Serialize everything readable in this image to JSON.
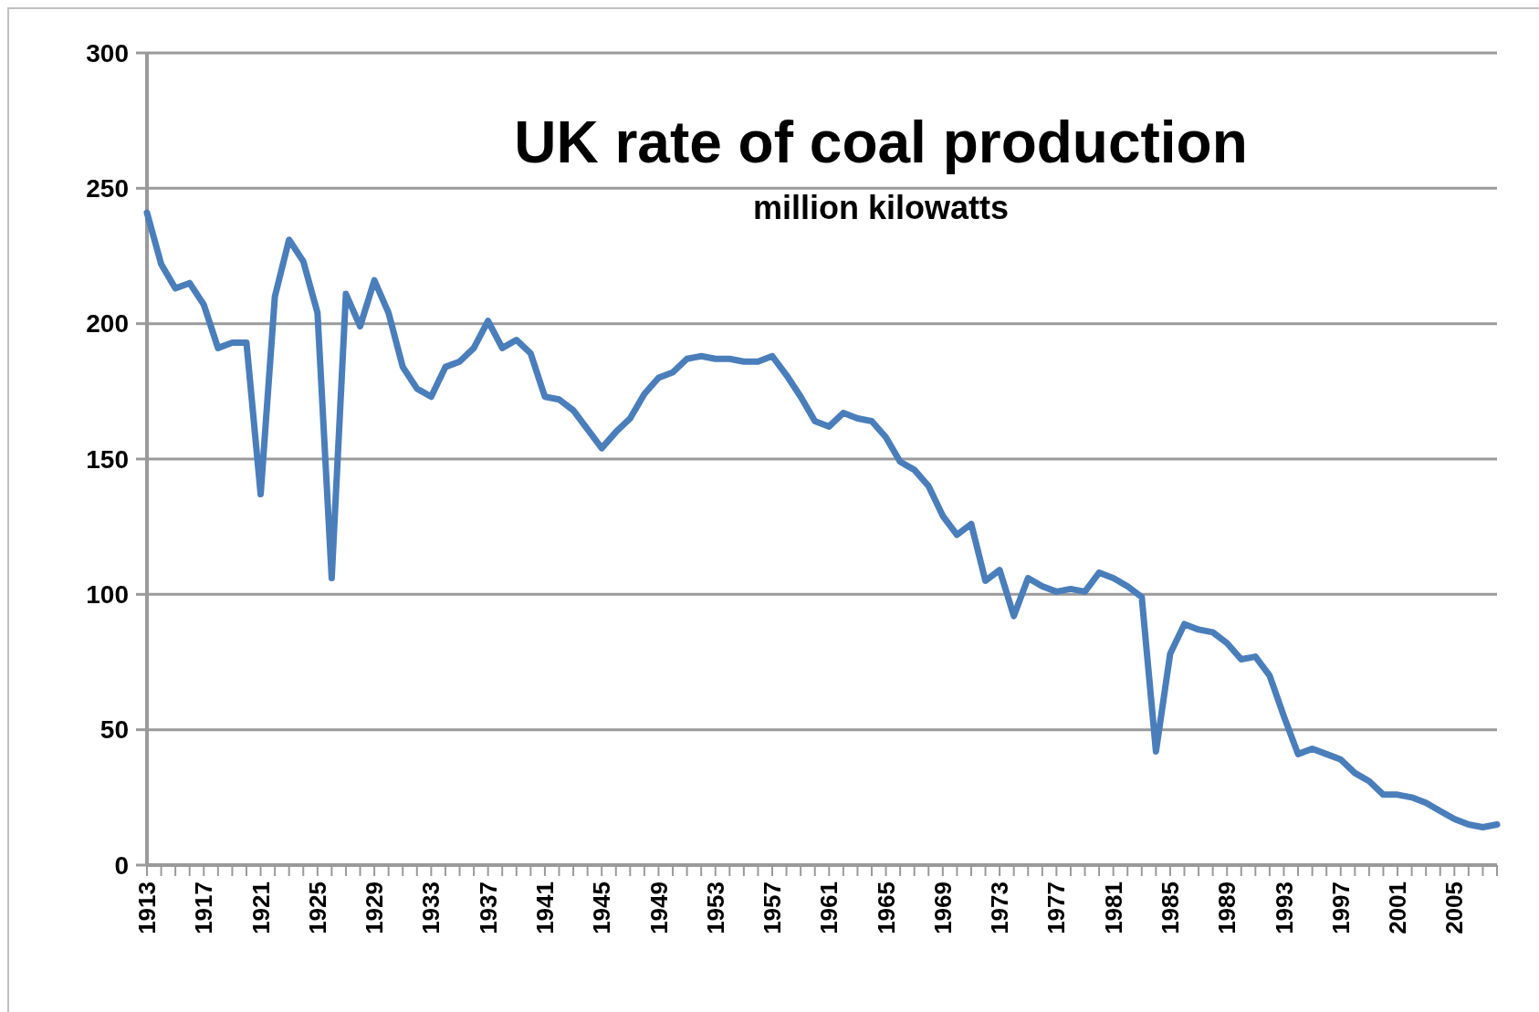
{
  "chart_data": {
    "type": "line",
    "title": "UK rate of coal production",
    "subtitle": "million kilowatts",
    "categories": [
      "1913",
      null,
      null,
      null,
      "1917",
      null,
      null,
      null,
      "1921",
      null,
      null,
      null,
      "1925",
      null,
      null,
      null,
      "1929",
      null,
      null,
      null,
      "1933",
      null,
      null,
      null,
      "1937",
      null,
      null,
      null,
      "1941",
      null,
      null,
      null,
      "1945",
      null,
      null,
      null,
      "1949",
      null,
      null,
      null,
      "1953",
      null,
      null,
      null,
      "1957",
      null,
      null,
      null,
      "1961",
      null,
      null,
      null,
      "1965",
      null,
      null,
      null,
      "1969",
      null,
      null,
      null,
      "1973",
      null,
      null,
      null,
      "1977",
      null,
      null,
      null,
      "1981",
      null,
      null,
      null,
      "1985",
      null,
      null,
      null,
      "1989",
      null,
      null,
      null,
      "1993",
      null,
      null,
      null,
      "1997",
      null,
      null,
      null,
      "2001",
      null,
      null,
      null,
      "2005",
      null,
      null,
      null
    ],
    "series": [
      {
        "color": "#4a7ebb",
        "values": [
          241,
          222,
          213,
          215,
          207,
          191,
          193,
          193,
          137,
          210,
          231,
          223,
          204,
          106,
          211,
          199,
          216,
          204,
          184,
          176,
          173,
          184,
          186,
          191,
          201,
          191,
          194,
          189,
          173,
          172,
          168,
          161,
          154,
          160,
          165,
          174,
          180,
          182,
          187,
          188,
          187,
          187,
          186,
          186,
          188,
          181,
          173,
          164,
          162,
          167,
          165,
          164,
          158,
          149,
          146,
          140,
          129,
          122,
          126,
          105,
          109,
          92,
          106,
          103,
          101,
          102,
          101,
          108,
          106,
          103,
          99,
          42,
          78,
          89,
          87,
          86,
          82,
          76,
          77,
          70,
          55,
          41,
          43,
          41,
          39,
          34,
          31,
          26,
          26,
          25,
          23,
          20,
          17,
          15,
          14,
          15
        ]
      }
    ],
    "ylim": [
      0,
      300
    ],
    "yticks": [
      0,
      50,
      100,
      150,
      200,
      250,
      300
    ],
    "grid": "y",
    "marker": "none",
    "line_style": "solid"
  }
}
